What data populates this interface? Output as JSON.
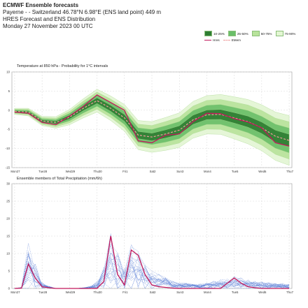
{
  "header": {
    "title": "ECMWF Ensemble forecasts",
    "location": "Payerne -  - Switzerland 46.78°N 6.98°E (ENS land point) 449 m",
    "source": "HRES Forecast and ENS Distribution",
    "date": "Monday 27 November 2023 00 UTC"
  },
  "legend": {
    "items": [
      "10-25%",
      "25-50%",
      "50-75%",
      "75-90%"
    ],
    "colors": [
      "#2e7d32",
      "#6abf69",
      "#b8e39b",
      "#e3f6d3"
    ],
    "line_items": [
      {
        "label": "Hres",
        "color": "#c2185b",
        "style": "solid"
      },
      {
        "label": "EMem",
        "color": "#ef9a9a",
        "style": "dashed"
      }
    ]
  },
  "chart_data": [
    {
      "type": "area",
      "title": "Temperature at 850 hPa - Probability for 1°C intervals",
      "ylim": [
        -15,
        10
      ],
      "y_ticks": [
        "10",
        "5",
        "0",
        "-5",
        "-10",
        "-15"
      ],
      "categories": [
        "Mon27",
        "Tue28",
        "Wed29",
        "Thu30",
        "Fri1",
        "Sat2",
        "Sun3",
        "Mon4",
        "Tue5",
        "Wed6",
        "Thu7"
      ],
      "x": [
        0,
        0.5,
        1,
        1.5,
        2,
        2.5,
        3,
        3.5,
        4,
        4.5,
        5,
        5.5,
        6,
        6.5,
        7,
        7.5,
        8,
        8.5,
        9,
        9.5,
        10
      ],
      "grid": true,
      "series": [
        {
          "name": "Hres",
          "color": "#c2185b",
          "values": [
            -0.5,
            -0.8,
            -3.2,
            -3.8,
            -1.5,
            1,
            4,
            2,
            0,
            -8,
            -8.5,
            -6.5,
            -6.2,
            -3,
            -0.8,
            -0.9,
            -2.2,
            -3.1,
            -4.6,
            -8.5,
            -9.4
          ]
        },
        {
          "name": "EMem",
          "color": "#ef9a9a",
          "values": [
            -0.3,
            -0.5,
            -2.8,
            -3.2,
            -1.8,
            0.5,
            2.5,
            0.5,
            -2,
            -6.5,
            -7,
            -6.2,
            -5.2,
            -2.5,
            -1.2,
            -1.1,
            -2,
            -3,
            -4.6,
            -6.8,
            -7.9
          ]
        }
      ],
      "band_halfwidth": [
        0.8,
        1,
        1.2,
        1.5,
        2,
        2.5,
        3,
        3.2,
        3.5,
        3.8,
        4,
        4.3,
        4.5,
        4.8,
        5,
        5.2,
        5.5,
        5.8,
        6,
        6.3,
        6.5
      ]
    },
    {
      "type": "line",
      "title": "Ensemble members of Total Precipitation (mm/6h)",
      "ylim": [
        0,
        30
      ],
      "y_ticks": [
        "30",
        "25",
        "20",
        "15",
        "10",
        "5",
        "0"
      ],
      "categories": [
        "Mon27",
        "Tue28",
        "Wed29",
        "Thu30",
        "Fri1",
        "Sat2",
        "Sun3",
        "Mon4",
        "Tue5",
        "Wed6",
        "Thu7"
      ],
      "x": [
        0,
        0.25,
        0.5,
        0.75,
        1,
        1.25,
        1.5,
        1.75,
        2,
        2.25,
        2.5,
        2.75,
        3,
        3.25,
        3.5,
        3.75,
        4,
        4.25,
        4.5,
        4.75,
        5,
        5.25,
        5.5,
        5.75,
        6,
        6.25,
        6.5,
        6.75,
        7,
        7.25,
        7.5,
        7.75,
        8,
        8.25,
        8.5,
        8.75,
        9,
        9.25,
        9.5,
        9.75,
        10
      ],
      "grid": true,
      "series": [
        {
          "name": "Hres",
          "color": "#c2185b",
          "values": [
            0,
            0.1,
            7,
            3,
            0.5,
            0.2,
            0,
            0,
            0,
            0,
            0,
            0,
            0,
            2,
            15,
            4,
            1,
            11,
            9.5,
            4,
            1,
            0.5,
            0.3,
            0.1,
            0,
            0,
            0,
            0,
            0,
            0,
            0,
            1.5,
            3,
            1.5,
            0.5,
            0.2,
            0,
            0,
            0,
            0,
            0
          ]
        },
        {
          "name": "EMem",
          "color": "#5b7fd6",
          "values": [
            0,
            0.2,
            6.5,
            3.5,
            0.8,
            0.3,
            0,
            0,
            0,
            0,
            0.1,
            0.3,
            1,
            3,
            8,
            5,
            3,
            6,
            5.5,
            3.5,
            2.5,
            2,
            1.5,
            1,
            0.8,
            0.8,
            0.7,
            0.6,
            0.8,
            1,
            1.2,
            1.6,
            1.8,
            1.5,
            1.2,
            1,
            0.9,
            0.8,
            0.8,
            0.7,
            0.6
          ]
        }
      ]
    }
  ]
}
